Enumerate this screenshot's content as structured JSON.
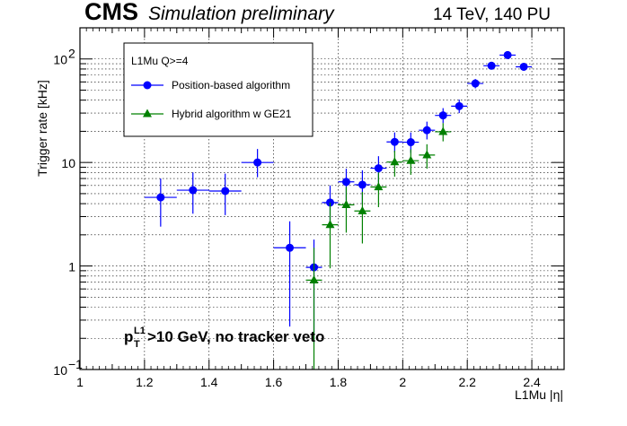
{
  "header": {
    "experiment": "CMS",
    "status": "Simulation preliminary",
    "conditions": "14 TeV, 140 PU"
  },
  "annotation": {
    "p": "p",
    "sub": "T",
    "sup": "L1",
    "rest": ">10 GeV, no tracker veto"
  },
  "colors": {
    "series_blue": "#0000ff",
    "series_green": "#008000",
    "grid": "#000000",
    "background": "#ffffff"
  },
  "chart_data": {
    "type": "scatter",
    "xlabel": "L1Mu |η|",
    "ylabel": "Trigger rate [kHz]",
    "xlim": [
      1.0,
      2.5
    ],
    "ylim": [
      0.1,
      200
    ],
    "y_scale": "log",
    "grid": true,
    "legend_title": "L1Mu Q>=4",
    "legend_position": "top-left",
    "x_ticks": [
      "1",
      "1.2",
      "1.4",
      "1.6",
      "1.8",
      "2",
      "2.2",
      "2.4"
    ],
    "y_ticks": [
      {
        "value": 0.1,
        "base": "10",
        "exp": "−1"
      },
      {
        "value": 1,
        "base": "1",
        "exp": ""
      },
      {
        "value": 10,
        "base": "10",
        "exp": ""
      },
      {
        "value": 100,
        "base": "10",
        "exp": "2"
      }
    ],
    "series": [
      {
        "name": "Position-based algorithm",
        "color": "#0000ff",
        "marker": "circle",
        "points": [
          {
            "x": 1.25,
            "y": 4.6,
            "xerr": 0.05,
            "ylo": 2.4,
            "yhi": 7.0
          },
          {
            "x": 1.35,
            "y": 5.4,
            "xerr": 0.05,
            "ylo": 3.2,
            "yhi": 8.0
          },
          {
            "x": 1.45,
            "y": 5.3,
            "xerr": 0.05,
            "ylo": 3.1,
            "yhi": 7.8
          },
          {
            "x": 1.55,
            "y": 10.0,
            "xerr": 0.05,
            "ylo": 7.2,
            "yhi": 13.5
          },
          {
            "x": 1.65,
            "y": 1.5,
            "xerr": 0.05,
            "ylo": 0.26,
            "yhi": 2.7
          },
          {
            "x": 1.725,
            "y": 0.97,
            "xerr": 0.025,
            "ylo": 0.18,
            "yhi": 1.8
          },
          {
            "x": 1.775,
            "y": 4.1,
            "xerr": 0.025,
            "ylo": 2.3,
            "yhi": 6.0
          },
          {
            "x": 1.825,
            "y": 6.5,
            "xerr": 0.025,
            "ylo": 4.3,
            "yhi": 8.7
          },
          {
            "x": 1.875,
            "y": 6.1,
            "xerr": 0.025,
            "ylo": 4.0,
            "yhi": 8.4
          },
          {
            "x": 1.925,
            "y": 8.8,
            "xerr": 0.025,
            "ylo": 6.4,
            "yhi": 11.5
          },
          {
            "x": 1.975,
            "y": 15.8,
            "xerr": 0.025,
            "ylo": 12.5,
            "yhi": 19.5
          },
          {
            "x": 2.025,
            "y": 15.7,
            "xerr": 0.025,
            "ylo": 12.4,
            "yhi": 19.5
          },
          {
            "x": 2.075,
            "y": 20.5,
            "xerr": 0.025,
            "ylo": 16.7,
            "yhi": 24.8
          },
          {
            "x": 2.125,
            "y": 28.5,
            "xerr": 0.025,
            "ylo": 24.0,
            "yhi": 33.5
          },
          {
            "x": 2.175,
            "y": 35.0,
            "xerr": 0.025,
            "ylo": 30.0,
            "yhi": 40.5
          },
          {
            "x": 2.225,
            "y": 58.0,
            "xerr": 0.025,
            "ylo": 52.0,
            "yhi": 64.0
          },
          {
            "x": 2.275,
            "y": 86.0,
            "xerr": 0.025,
            "ylo": 79.0,
            "yhi": 93.0
          },
          {
            "x": 2.325,
            "y": 109.0,
            "xerr": 0.025,
            "ylo": 101.0,
            "yhi": 117.0
          },
          {
            "x": 2.375,
            "y": 84.0,
            "xerr": 0.025,
            "ylo": 77.0,
            "yhi": 91.0
          }
        ]
      },
      {
        "name": "Hybrid algorithm w GE21",
        "color": "#008000",
        "marker": "triangle",
        "points": [
          {
            "x": 1.725,
            "y": 0.73,
            "xerr": 0.025,
            "ylo": 0.1,
            "yhi": 1.5
          },
          {
            "x": 1.775,
            "y": 2.5,
            "xerr": 0.025,
            "ylo": 0.95,
            "yhi": 4.1
          },
          {
            "x": 1.825,
            "y": 3.9,
            "xerr": 0.025,
            "ylo": 2.1,
            "yhi": 5.8
          },
          {
            "x": 1.875,
            "y": 3.4,
            "xerr": 0.025,
            "ylo": 1.65,
            "yhi": 5.2
          },
          {
            "x": 1.925,
            "y": 5.8,
            "xerr": 0.025,
            "ylo": 3.7,
            "yhi": 8.0
          },
          {
            "x": 1.975,
            "y": 10.1,
            "xerr": 0.025,
            "ylo": 7.3,
            "yhi": 13.0
          },
          {
            "x": 2.025,
            "y": 10.4,
            "xerr": 0.025,
            "ylo": 7.6,
            "yhi": 13.4
          },
          {
            "x": 2.075,
            "y": 11.8,
            "xerr": 0.025,
            "ylo": 8.7,
            "yhi": 15.0
          },
          {
            "x": 2.125,
            "y": 19.8,
            "xerr": 0.025,
            "ylo": 16.0,
            "yhi": 24.0
          }
        ]
      }
    ]
  }
}
